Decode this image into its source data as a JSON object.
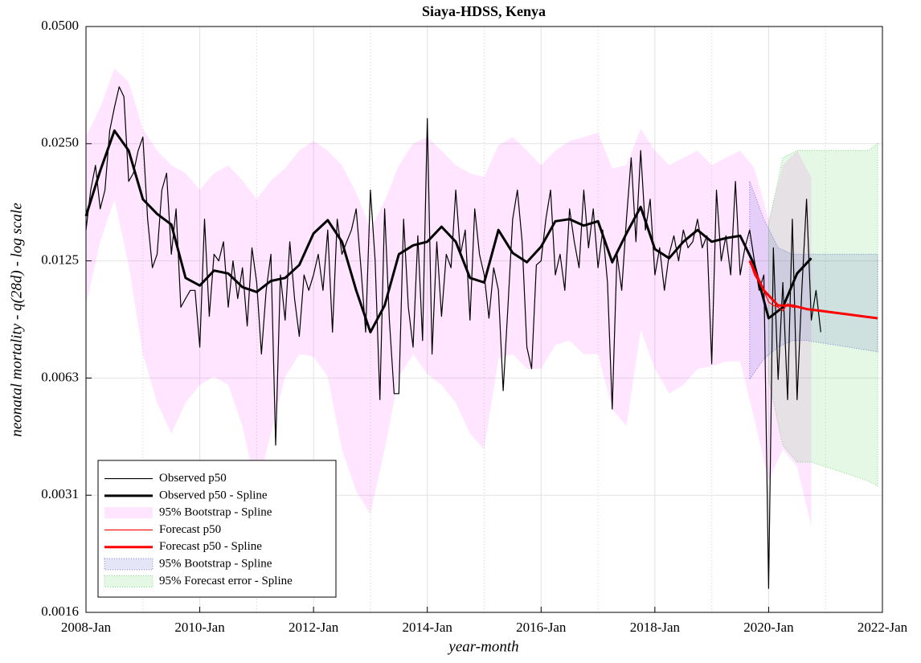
{
  "chart_data": {
    "type": "line",
    "title": "Siaya-HDSS, Kenya",
    "xlabel": "year-month",
    "ylabel": "neonatal mortality  -  q(28d)  -  log scale",
    "log_y": true,
    "grid": true,
    "minor_x_grid": true,
    "legend": "lower left",
    "xlim": [
      "2008-01",
      "2022-01"
    ],
    "xticks": [
      {
        "value": "2008-01",
        "label": "2008-Jan"
      },
      {
        "value": "2010-01",
        "label": "2010-Jan"
      },
      {
        "value": "2012-01",
        "label": "2012-Jan"
      },
      {
        "value": "2014-01",
        "label": "2014-Jan"
      },
      {
        "value": "2016-01",
        "label": "2016-Jan"
      },
      {
        "value": "2018-01",
        "label": "2018-Jan"
      },
      {
        "value": "2020-01",
        "label": "2020-Jan"
      },
      {
        "value": "2022-01",
        "label": "2022-Jan"
      }
    ],
    "ylim": [
      0.0015625,
      0.05
    ],
    "yticks": [
      {
        "value": 0.0015625,
        "label": "0.0016"
      },
      {
        "value": 0.003125,
        "label": "0.0031"
      },
      {
        "value": 0.00625,
        "label": "0.0063"
      },
      0.0125,
      {
        "value": 0.025,
        "label": "0.0250"
      },
      {
        "value": 0.05,
        "label": "0.0500"
      }
    ],
    "series": [
      {
        "name": "Observed p50",
        "color": "#000000",
        "line_width": 1.2,
        "x": [
          "2008-01",
          "2008-02",
          "2008-03",
          "2008-04",
          "2008-05",
          "2008-06",
          "2008-07",
          "2008-08",
          "2008-09",
          "2008-10",
          "2008-11",
          "2008-12",
          "2009-01",
          "2009-02",
          "2009-03",
          "2009-04",
          "2009-05",
          "2009-06",
          "2009-07",
          "2009-08",
          "2009-09",
          "2009-10",
          "2009-11",
          "2009-12",
          "2010-01",
          "2010-02",
          "2010-03",
          "2010-04",
          "2010-05",
          "2010-06",
          "2010-07",
          "2010-08",
          "2010-09",
          "2010-10",
          "2010-11",
          "2010-12",
          "2011-01",
          "2011-02",
          "2011-03",
          "2011-04",
          "2011-05",
          "2011-06",
          "2011-07",
          "2011-08",
          "2011-09",
          "2011-10",
          "2011-11",
          "2011-12",
          "2012-01",
          "2012-02",
          "2012-03",
          "2012-04",
          "2012-05",
          "2012-06",
          "2012-07",
          "2012-08",
          "2012-09",
          "2012-10",
          "2012-11",
          "2012-12",
          "2013-01",
          "2013-02",
          "2013-03",
          "2013-04",
          "2013-05",
          "2013-06",
          "2013-07",
          "2013-08",
          "2013-09",
          "2013-10",
          "2013-11",
          "2013-12",
          "2014-01",
          "2014-02",
          "2014-03",
          "2014-04",
          "2014-05",
          "2014-06",
          "2014-07",
          "2014-08",
          "2014-09",
          "2014-10",
          "2014-11",
          "2014-12",
          "2015-01",
          "2015-02",
          "2015-03",
          "2015-04",
          "2015-05",
          "2015-06",
          "2015-07",
          "2015-08",
          "2015-09",
          "2015-10",
          "2015-11",
          "2015-12",
          "2016-01",
          "2016-02",
          "2016-03",
          "2016-04",
          "2016-05",
          "2016-06",
          "2016-07",
          "2016-08",
          "2016-09",
          "2016-10",
          "2016-11",
          "2016-12",
          "2017-01",
          "2017-02",
          "2017-03",
          "2017-04",
          "2017-05",
          "2017-06",
          "2017-07",
          "2017-08",
          "2017-09",
          "2017-10",
          "2017-11",
          "2017-12",
          "2018-01",
          "2018-02",
          "2018-03",
          "2018-04",
          "2018-05",
          "2018-06",
          "2018-07",
          "2018-08",
          "2018-09",
          "2018-10",
          "2018-11",
          "2018-12",
          "2019-01",
          "2019-02",
          "2019-03",
          "2019-04",
          "2019-05",
          "2019-06",
          "2019-07",
          "2019-08",
          "2019-09",
          "2019-10",
          "2019-11",
          "2019-12",
          "2020-01",
          "2020-02",
          "2020-03",
          "2020-04",
          "2020-05",
          "2020-06",
          "2020-07",
          "2020-08",
          "2020-09",
          "2020-10",
          "2020-11",
          "2020-12"
        ],
        "values": [
          0.015,
          0.019,
          0.022,
          0.017,
          0.019,
          0.027,
          0.031,
          0.035,
          0.033,
          0.02,
          0.021,
          0.024,
          0.026,
          0.016,
          0.012,
          0.013,
          0.019,
          0.021,
          0.013,
          0.017,
          0.0095,
          0.01,
          0.0105,
          0.0105,
          0.0075,
          0.016,
          0.009,
          0.013,
          0.0125,
          0.014,
          0.0095,
          0.0125,
          0.01,
          0.012,
          0.0085,
          0.0135,
          0.011,
          0.0072,
          0.0105,
          0.013,
          0.0042,
          0.0115,
          0.0088,
          0.014,
          0.01,
          0.008,
          0.0115,
          0.0105,
          0.0115,
          0.013,
          0.0105,
          0.015,
          0.0082,
          0.016,
          0.013,
          0.014,
          0.015,
          0.017,
          0.012,
          0.0082,
          0.019,
          0.0125,
          0.0055,
          0.017,
          0.0088,
          0.0057,
          0.0057,
          0.016,
          0.0095,
          0.0075,
          0.0145,
          0.0078,
          0.029,
          0.0072,
          0.014,
          0.009,
          0.013,
          0.012,
          0.019,
          0.013,
          0.015,
          0.0088,
          0.017,
          0.013,
          0.0115,
          0.0089,
          0.012,
          0.0105,
          0.0058,
          0.0095,
          0.016,
          0.019,
          0.014,
          0.0075,
          0.0066,
          0.0122,
          0.0125,
          0.016,
          0.019,
          0.0115,
          0.013,
          0.0105,
          0.017,
          0.014,
          0.012,
          0.019,
          0.0135,
          0.017,
          0.012,
          0.015,
          0.011,
          0.0052,
          0.013,
          0.0105,
          0.016,
          0.023,
          0.014,
          0.024,
          0.015,
          0.018,
          0.0115,
          0.0135,
          0.0105,
          0.013,
          0.0145,
          0.0125,
          0.015,
          0.0135,
          0.014,
          0.016,
          0.0135,
          0.0145,
          0.0068,
          0.019,
          0.0125,
          0.0145,
          0.0115,
          0.02,
          0.0115,
          0.0135,
          0.015,
          0.0125,
          0.0105,
          0.0115,
          0.0018,
          0.0135,
          0.0062,
          0.011,
          0.0055,
          0.016,
          0.0055,
          0.0105,
          0.018,
          0.0088,
          0.0105,
          0.0082
        ]
      },
      {
        "name": "Observed p50 - Spline",
        "color": "#000000",
        "line_width": 3,
        "x": [
          "2008-01",
          "2008-04",
          "2008-07",
          "2008-10",
          "2009-01",
          "2009-04",
          "2009-07",
          "2009-10",
          "2010-01",
          "2010-04",
          "2010-07",
          "2010-10",
          "2011-01",
          "2011-04",
          "2011-07",
          "2011-10",
          "2012-01",
          "2012-04",
          "2012-07",
          "2012-10",
          "2013-01",
          "2013-04",
          "2013-07",
          "2013-10",
          "2014-01",
          "2014-04",
          "2014-07",
          "2014-10",
          "2015-01",
          "2015-04",
          "2015-07",
          "2015-10",
          "2016-01",
          "2016-04",
          "2016-07",
          "2016-10",
          "2017-01",
          "2017-04",
          "2017-07",
          "2017-10",
          "2018-01",
          "2018-04",
          "2018-07",
          "2018-10",
          "2019-01",
          "2019-04",
          "2019-07",
          "2019-10",
          "2020-01",
          "2020-04",
          "2020-07",
          "2020-10"
        ],
        "values": [
          0.0163,
          0.0213,
          0.027,
          0.024,
          0.018,
          0.0165,
          0.0155,
          0.0113,
          0.0108,
          0.0118,
          0.0116,
          0.0107,
          0.0104,
          0.0111,
          0.0113,
          0.0122,
          0.0147,
          0.0159,
          0.014,
          0.0105,
          0.0082,
          0.0096,
          0.013,
          0.0137,
          0.014,
          0.0153,
          0.014,
          0.0113,
          0.011,
          0.015,
          0.0131,
          0.0124,
          0.0136,
          0.0158,
          0.016,
          0.0154,
          0.0158,
          0.0124,
          0.0147,
          0.0172,
          0.0134,
          0.0127,
          0.014,
          0.015,
          0.014,
          0.0143,
          0.0145,
          0.0122,
          0.0089,
          0.0095,
          0.0116,
          0.0127
        ]
      },
      {
        "name": "95% Bootstrap - Spline",
        "color": "#ff33ff",
        "band": true,
        "x": [
          "2008-01",
          "2008-04",
          "2008-07",
          "2008-10",
          "2009-01",
          "2009-04",
          "2009-07",
          "2009-10",
          "2010-01",
          "2010-04",
          "2010-07",
          "2010-10",
          "2011-01",
          "2011-04",
          "2011-07",
          "2011-10",
          "2012-01",
          "2012-04",
          "2012-07",
          "2012-10",
          "2013-01",
          "2013-04",
          "2013-07",
          "2013-10",
          "2014-01",
          "2014-04",
          "2014-07",
          "2014-10",
          "2015-01",
          "2015-04",
          "2015-07",
          "2015-10",
          "2016-01",
          "2016-04",
          "2016-07",
          "2016-10",
          "2017-01",
          "2017-04",
          "2017-07",
          "2017-10",
          "2018-01",
          "2018-04",
          "2018-07",
          "2018-10",
          "2019-01",
          "2019-04",
          "2019-07",
          "2019-10",
          "2020-01",
          "2020-04",
          "2020-07",
          "2020-10"
        ],
        "lower": [
          0.0096,
          0.014,
          0.018,
          0.0122,
          0.0072,
          0.0054,
          0.0045,
          0.0054,
          0.006,
          0.0063,
          0.006,
          0.0047,
          0.0032,
          0.0045,
          0.0063,
          0.0072,
          0.0071,
          0.0063,
          0.0041,
          0.0032,
          0.0028,
          0.0041,
          0.0063,
          0.0072,
          0.0064,
          0.006,
          0.0054,
          0.0045,
          0.0041,
          0.007,
          0.0072,
          0.0066,
          0.0066,
          0.0076,
          0.0078,
          0.0072,
          0.0072,
          0.0052,
          0.0047,
          0.0083,
          0.0066,
          0.0057,
          0.006,
          0.0066,
          0.0067,
          0.0069,
          0.0069,
          0.0049,
          0.0034,
          0.0041,
          0.0037,
          0.0026
        ],
        "upper": [
          0.026,
          0.031,
          0.039,
          0.036,
          0.0273,
          0.024,
          0.022,
          0.021,
          0.019,
          0.021,
          0.022,
          0.0201,
          0.018,
          0.0201,
          0.0216,
          0.024,
          0.0254,
          0.024,
          0.022,
          0.0187,
          0.0151,
          0.0178,
          0.022,
          0.025,
          0.026,
          0.024,
          0.022,
          0.021,
          0.0205,
          0.0248,
          0.026,
          0.024,
          0.022,
          0.024,
          0.0254,
          0.026,
          0.0267,
          0.0216,
          0.022,
          0.0273,
          0.024,
          0.022,
          0.023,
          0.024,
          0.022,
          0.023,
          0.024,
          0.0216,
          0.016,
          0.022,
          0.024,
          0.0205
        ]
      },
      {
        "name": "Forecast p50",
        "color": "#ff0000",
        "line_width": 1.2,
        "x": [
          "2019-09",
          "2019-10",
          "2019-11",
          "2019-12",
          "2020-01",
          "2020-02",
          "2020-03",
          "2020-04",
          "2020-05",
          "2020-06",
          "2020-07",
          "2020-08",
          "2020-09",
          "2020-10",
          "2020-11",
          "2020-12"
        ],
        "values": [
          0.0125,
          0.0115,
          0.011,
          0.0105,
          0.0098,
          0.0096,
          0.0095,
          0.0093,
          0.0097,
          0.0095,
          0.0095,
          0.0095,
          0.0094,
          0.0094,
          0.0093,
          0.0093
        ]
      },
      {
        "name": "Forecast p50 - Spline",
        "color": "#ff0000",
        "line_width": 3,
        "x": [
          "2019-09",
          "2019-12",
          "2020-03",
          "2020-06",
          "2020-09",
          "2020-12",
          "2021-03",
          "2021-06",
          "2021-09",
          "2021-12"
        ],
        "values": [
          0.0125,
          0.0105,
          0.0096,
          0.0096,
          0.0094,
          0.0093,
          0.0092,
          0.0091,
          0.009,
          0.0089
        ]
      },
      {
        "name": "95% Bootstrap - Spline",
        "color": "#3333cc",
        "band": true,
        "dotted": true,
        "x": [
          "2019-09",
          "2019-12",
          "2020-03",
          "2020-06",
          "2020-09",
          "2020-12",
          "2021-03",
          "2021-06",
          "2021-09",
          "2021-12"
        ],
        "lower": [
          0.0062,
          0.007,
          0.0075,
          0.0078,
          0.0078,
          0.0077,
          0.0076,
          0.0075,
          0.0074,
          0.0073
        ],
        "upper": [
          0.02,
          0.016,
          0.0135,
          0.013,
          0.013,
          0.013,
          0.013,
          0.013,
          0.013,
          0.013
        ]
      },
      {
        "name": "95% Forecast error - Spline",
        "color": "#33cc33",
        "band": true,
        "dotted": true,
        "x": [
          "2020-01",
          "2020-04",
          "2020-07",
          "2020-10",
          "2021-01",
          "2021-04",
          "2021-07",
          "2021-10",
          "2021-12"
        ],
        "lower": [
          0.0062,
          0.0042,
          0.0038,
          0.0038,
          0.0037,
          0.0036,
          0.0035,
          0.0034,
          0.0033
        ],
        "upper": [
          0.0155,
          0.023,
          0.024,
          0.024,
          0.024,
          0.024,
          0.024,
          0.024,
          0.025
        ]
      }
    ]
  }
}
